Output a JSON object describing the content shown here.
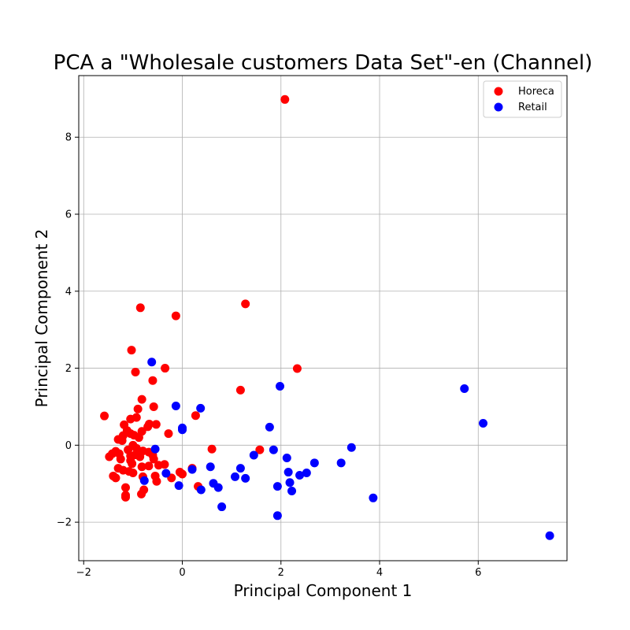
{
  "chart_data": {
    "type": "scatter",
    "title": "PCA a \"Wholesale customers Data Set\"-en (Channel)",
    "xlabel": "Principal Component 1",
    "ylabel": "Principal Component 2",
    "xlim": [
      -2.1,
      7.8
    ],
    "ylim": [
      -3.0,
      9.6
    ],
    "x_ticks": [
      -2,
      0,
      2,
      4,
      6
    ],
    "y_ticks": [
      -2,
      0,
      2,
      4,
      6,
      8
    ],
    "x_tick_labels": [
      "−2",
      "0",
      "2",
      "4",
      "6"
    ],
    "y_tick_labels": [
      "−2",
      "0",
      "2",
      "4",
      "6",
      "8"
    ],
    "grid": true,
    "legend_position": "top-right",
    "series": [
      {
        "name": "Horeca",
        "color": "#ff0000",
        "points": [
          [
            2.08,
            8.98
          ],
          [
            1.28,
            3.67
          ],
          [
            -0.85,
            3.57
          ],
          [
            -0.13,
            3.36
          ],
          [
            -1.03,
            2.47
          ],
          [
            2.33,
            1.99
          ],
          [
            -0.35,
            2.0
          ],
          [
            -0.95,
            1.9
          ],
          [
            -0.6,
            1.68
          ],
          [
            1.18,
            1.43
          ],
          [
            -0.82,
            1.19
          ],
          [
            -0.9,
            0.94
          ],
          [
            -0.58,
            1.0
          ],
          [
            -0.93,
            0.72
          ],
          [
            -1.05,
            0.68
          ],
          [
            0.27,
            0.77
          ],
          [
            -1.58,
            0.76
          ],
          [
            -0.67,
            0.55
          ],
          [
            -0.53,
            0.54
          ],
          [
            -1.18,
            0.53
          ],
          [
            -0.7,
            0.48
          ],
          [
            -0.82,
            0.36
          ],
          [
            -1.12,
            0.38
          ],
          [
            -1.05,
            0.3
          ],
          [
            -0.28,
            0.3
          ],
          [
            -1.2,
            0.25
          ],
          [
            -0.98,
            0.26
          ],
          [
            -1.3,
            0.15
          ],
          [
            -1.22,
            0.12
          ],
          [
            -0.88,
            0.2
          ],
          [
            -1.0,
            0.0
          ],
          [
            -0.93,
            -0.08
          ],
          [
            -1.1,
            -0.12
          ],
          [
            -0.8,
            -0.15
          ],
          [
            -0.68,
            -0.18
          ],
          [
            -1.35,
            -0.16
          ],
          [
            -1.28,
            -0.22
          ],
          [
            -0.95,
            -0.25
          ],
          [
            -1.05,
            -0.28
          ],
          [
            -0.6,
            -0.26
          ],
          [
            -0.86,
            -0.3
          ],
          [
            -1.48,
            -0.3
          ],
          [
            -1.42,
            -0.22
          ],
          [
            -1.25,
            -0.36
          ],
          [
            -1.05,
            -0.4
          ],
          [
            -0.58,
            -0.36
          ],
          [
            -1.02,
            -0.48
          ],
          [
            -0.68,
            -0.54
          ],
          [
            -0.82,
            -0.56
          ],
          [
            -0.48,
            -0.52
          ],
          [
            -0.36,
            -0.5
          ],
          [
            -1.3,
            -0.6
          ],
          [
            -1.2,
            -0.65
          ],
          [
            -1.08,
            -0.68
          ],
          [
            -1.0,
            -0.72
          ],
          [
            -0.8,
            -0.82
          ],
          [
            -0.55,
            -0.8
          ],
          [
            -0.22,
            -0.85
          ],
          [
            -0.05,
            -0.7
          ],
          [
            0.0,
            -0.75
          ],
          [
            0.2,
            -0.6
          ],
          [
            -1.4,
            -0.8
          ],
          [
            -1.35,
            -0.85
          ],
          [
            -0.52,
            -0.94
          ],
          [
            -0.78,
            -1.16
          ],
          [
            -1.15,
            -1.1
          ],
          [
            -0.83,
            -1.27
          ],
          [
            -1.15,
            -1.3
          ],
          [
            -1.15,
            -1.35
          ],
          [
            0.32,
            -1.07
          ],
          [
            0.6,
            -0.1
          ],
          [
            1.57,
            -0.12
          ]
        ]
      },
      {
        "name": "Retail",
        "color": "#0000ff",
        "points": [
          [
            -0.62,
            2.16
          ],
          [
            -0.13,
            1.02
          ],
          [
            0.37,
            0.96
          ],
          [
            0.0,
            0.45
          ],
          [
            0.0,
            0.4
          ],
          [
            1.98,
            1.53
          ],
          [
            1.77,
            0.47
          ],
          [
            5.72,
            1.47
          ],
          [
            6.1,
            0.57
          ],
          [
            -0.55,
            -0.1
          ],
          [
            1.85,
            -0.12
          ],
          [
            3.43,
            -0.06
          ],
          [
            1.45,
            -0.26
          ],
          [
            2.12,
            -0.33
          ],
          [
            2.68,
            -0.46
          ],
          [
            3.22,
            -0.46
          ],
          [
            0.57,
            -0.56
          ],
          [
            1.18,
            -0.6
          ],
          [
            0.2,
            -0.63
          ],
          [
            2.15,
            -0.7
          ],
          [
            2.52,
            -0.72
          ],
          [
            2.38,
            -0.78
          ],
          [
            -0.33,
            -0.73
          ],
          [
            1.07,
            -0.82
          ],
          [
            1.28,
            -0.86
          ],
          [
            -0.77,
            -0.92
          ],
          [
            0.63,
            -0.99
          ],
          [
            2.18,
            -0.97
          ],
          [
            -0.07,
            -1.05
          ],
          [
            1.93,
            -1.07
          ],
          [
            0.73,
            -1.1
          ],
          [
            0.38,
            -1.16
          ],
          [
            2.22,
            -1.19
          ],
          [
            3.87,
            -1.37
          ],
          [
            0.8,
            -1.6
          ],
          [
            1.93,
            -1.83
          ],
          [
            7.45,
            -2.35
          ]
        ]
      }
    ]
  }
}
